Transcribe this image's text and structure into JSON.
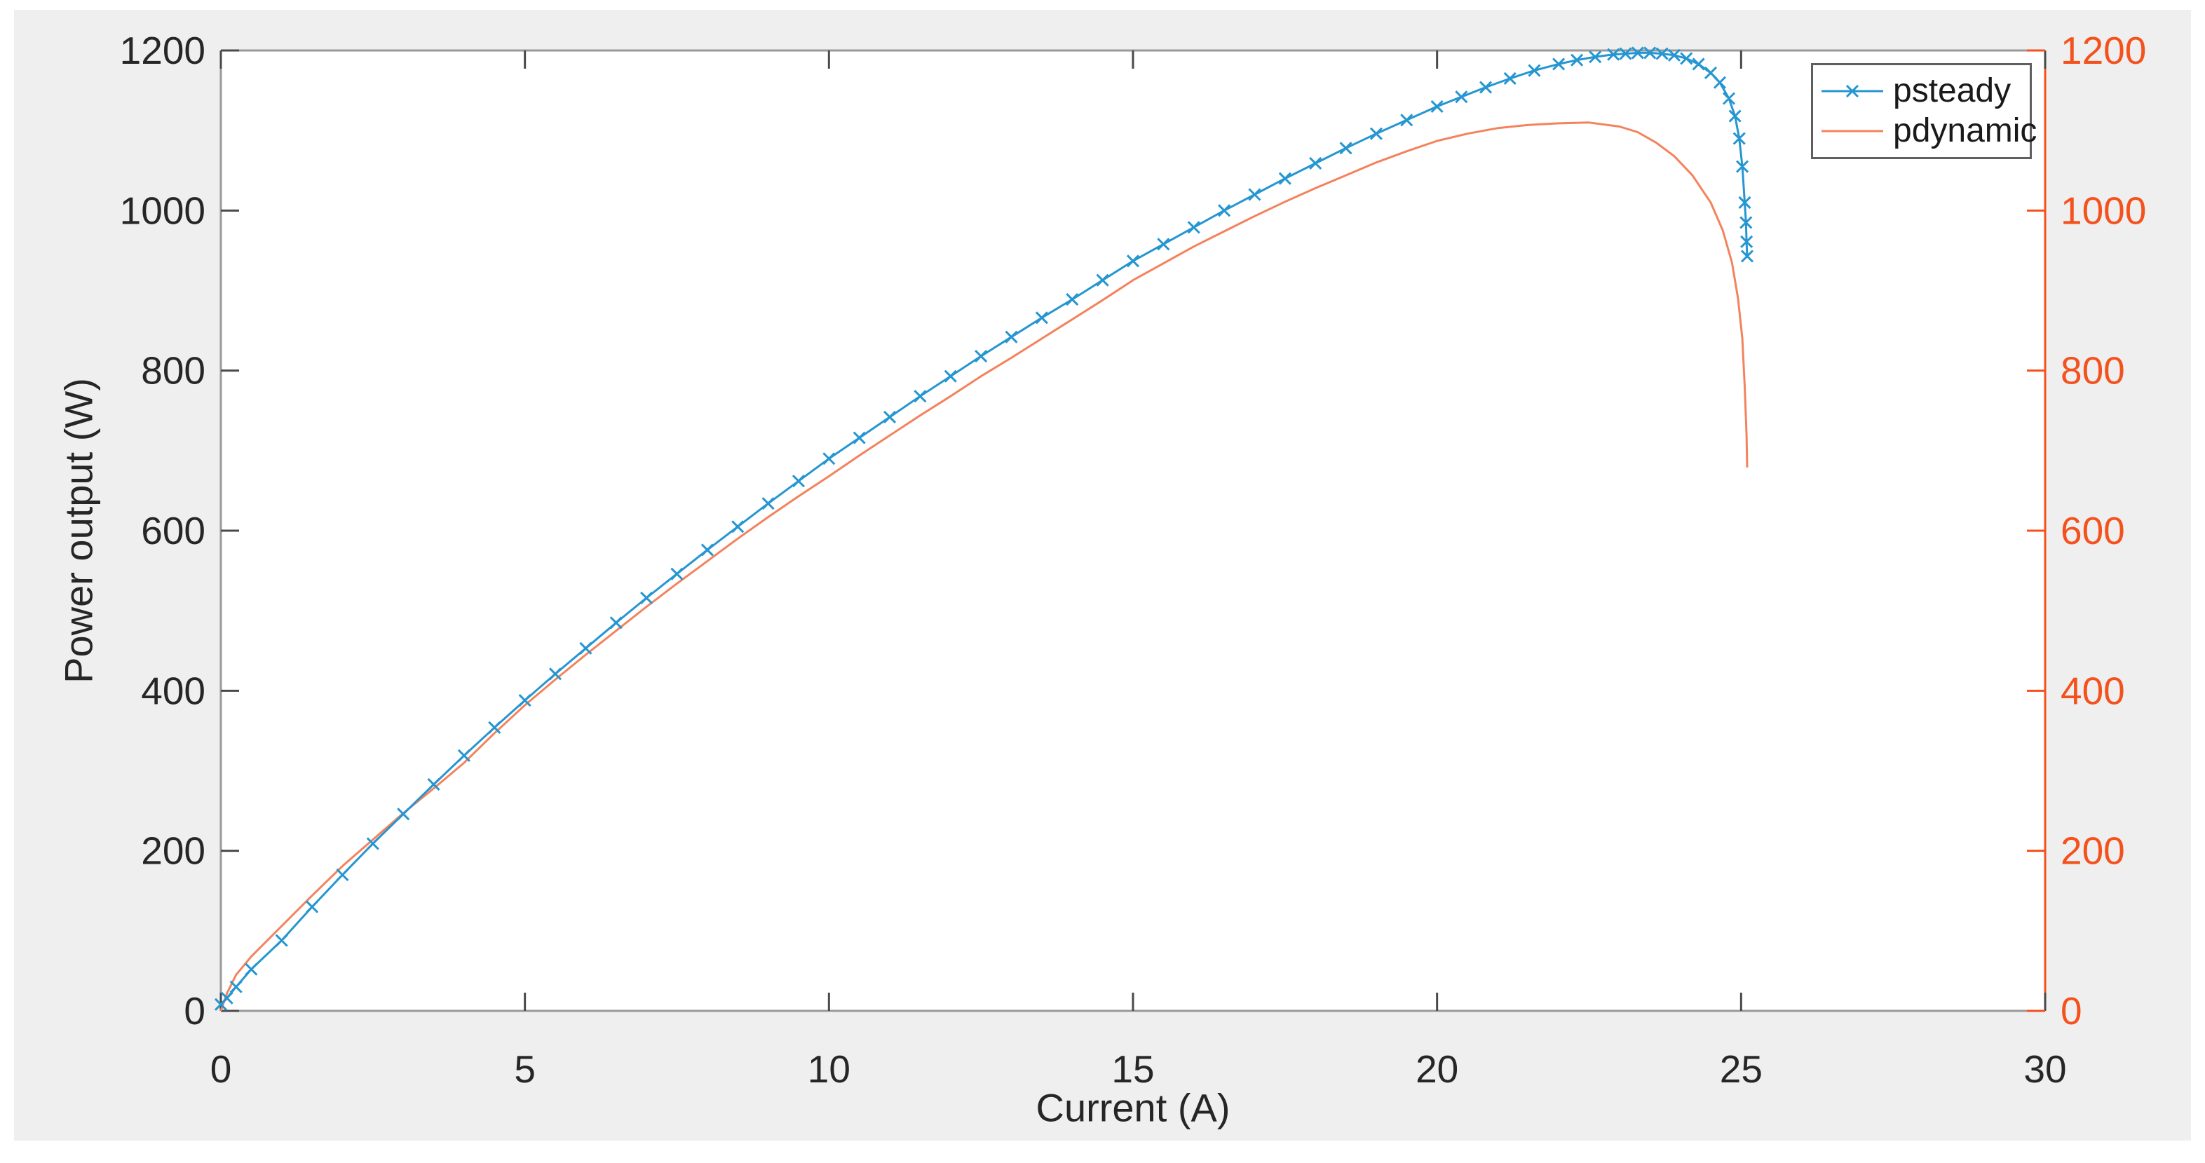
{
  "window": {
    "background": "#ffffff",
    "figure_background": "#efefef",
    "plot_background": "#ffffff"
  },
  "chart_data": {
    "type": "line",
    "title": "",
    "xlabel": "Current (A)",
    "ylabel": "Power output (W)",
    "xlim": [
      0,
      30
    ],
    "ylim_left": [
      0,
      1200
    ],
    "ylim_right": [
      0,
      1200
    ],
    "xticks": [
      0,
      5,
      10,
      15,
      20,
      25,
      30
    ],
    "yticks_left": [
      0,
      200,
      400,
      600,
      800,
      1000,
      1200
    ],
    "yticks_right": [
      0,
      200,
      400,
      600,
      800,
      1000,
      1200
    ],
    "grid": false,
    "box": true,
    "tick_direction": "in",
    "axis_colors": {
      "bottom_text": "#262626",
      "left_text": "#262626",
      "right_text": "#f4511c",
      "box_line": "#9a9a9a",
      "tick_line": "#4a4a4a",
      "right_axis_line": "#f4511c"
    },
    "legend": {
      "position": "top-right",
      "background": "#ffffff",
      "border_color": "#5f5f5f",
      "entries": [
        {
          "label": "psteady",
          "color": "#2596d1",
          "marker": "x"
        },
        {
          "label": "pdynamic",
          "color": "#f4825c",
          "marker": "none"
        }
      ]
    },
    "series": [
      {
        "name": "psteady",
        "axis": "left",
        "color": "#2596d1",
        "marker": "x",
        "line_width": 3,
        "points": [
          [
            0,
            8
          ],
          [
            0.1,
            16
          ],
          [
            0.25,
            30
          ],
          [
            0.5,
            52
          ],
          [
            1,
            88
          ],
          [
            1.5,
            130
          ],
          [
            2,
            170
          ],
          [
            2.5,
            209
          ],
          [
            3,
            246
          ],
          [
            3.5,
            283
          ],
          [
            4,
            319
          ],
          [
            4.5,
            354
          ],
          [
            5,
            388
          ],
          [
            5.5,
            421
          ],
          [
            6,
            453
          ],
          [
            6.5,
            485
          ],
          [
            7,
            516
          ],
          [
            7.5,
            546
          ],
          [
            8,
            576
          ],
          [
            8.5,
            605
          ],
          [
            9,
            634
          ],
          [
            9.5,
            662
          ],
          [
            10,
            690
          ],
          [
            10.5,
            716
          ],
          [
            11,
            742
          ],
          [
            11.5,
            768
          ],
          [
            12,
            793
          ],
          [
            12.5,
            818
          ],
          [
            13,
            842
          ],
          [
            13.5,
            866
          ],
          [
            14,
            889
          ],
          [
            14.5,
            913
          ],
          [
            15,
            937
          ],
          [
            15.5,
            958
          ],
          [
            16,
            979
          ],
          [
            16.5,
            1000
          ],
          [
            17,
            1020
          ],
          [
            17.5,
            1040
          ],
          [
            18,
            1059
          ],
          [
            18.5,
            1078
          ],
          [
            19,
            1096
          ],
          [
            19.5,
            1113
          ],
          [
            20,
            1130
          ],
          [
            20.4,
            1142
          ],
          [
            20.8,
            1154
          ],
          [
            21.2,
            1165
          ],
          [
            21.6,
            1175
          ],
          [
            22,
            1183
          ],
          [
            22.3,
            1188
          ],
          [
            22.6,
            1192
          ],
          [
            22.9,
            1195
          ],
          [
            23.1,
            1196
          ],
          [
            23.3,
            1197
          ],
          [
            23.5,
            1197
          ],
          [
            23.7,
            1196
          ],
          [
            23.9,
            1194
          ],
          [
            24.1,
            1190
          ],
          [
            24.3,
            1183
          ],
          [
            24.5,
            1172
          ],
          [
            24.65,
            1160
          ],
          [
            24.8,
            1140
          ],
          [
            24.9,
            1118
          ],
          [
            24.97,
            1090
          ],
          [
            25.02,
            1055
          ],
          [
            25.06,
            1010
          ],
          [
            25.08,
            985
          ],
          [
            25.09,
            961
          ],
          [
            25.1,
            943
          ]
        ]
      },
      {
        "name": "pdynamic",
        "axis": "right",
        "color": "#f4825c",
        "marker": "none",
        "line_width": 3,
        "points": [
          [
            0,
            0
          ],
          [
            0.1,
            22
          ],
          [
            0.25,
            45
          ],
          [
            0.5,
            68
          ],
          [
            0.75,
            87
          ],
          [
            1,
            106
          ],
          [
            1.5,
            144
          ],
          [
            2,
            181
          ],
          [
            2.5,
            214
          ],
          [
            3,
            247
          ],
          [
            3.5,
            278
          ],
          [
            4,
            310
          ],
          [
            4.5,
            347
          ],
          [
            5,
            382
          ],
          [
            5.5,
            414
          ],
          [
            6,
            445
          ],
          [
            6.5,
            475
          ],
          [
            7,
            505
          ],
          [
            7.5,
            534
          ],
          [
            8,
            562
          ],
          [
            8.5,
            590
          ],
          [
            9,
            617
          ],
          [
            9.5,
            643
          ],
          [
            10,
            668
          ],
          [
            10.5,
            694
          ],
          [
            11,
            719
          ],
          [
            11.5,
            744
          ],
          [
            12,
            768
          ],
          [
            12.5,
            793
          ],
          [
            13,
            816
          ],
          [
            13.5,
            840
          ],
          [
            14,
            864
          ],
          [
            14.5,
            888
          ],
          [
            15,
            913
          ],
          [
            15.5,
            934
          ],
          [
            16,
            955
          ],
          [
            16.5,
            974
          ],
          [
            17,
            993
          ],
          [
            17.5,
            1011
          ],
          [
            18,
            1028
          ],
          [
            18.5,
            1044
          ],
          [
            19,
            1060
          ],
          [
            19.5,
            1074
          ],
          [
            20,
            1087
          ],
          [
            20.5,
            1096
          ],
          [
            21,
            1103
          ],
          [
            21.5,
            1107
          ],
          [
            22,
            1109
          ],
          [
            22.5,
            1110
          ],
          [
            23,
            1105
          ],
          [
            23.3,
            1098
          ],
          [
            23.6,
            1085
          ],
          [
            23.9,
            1068
          ],
          [
            24.2,
            1044
          ],
          [
            24.5,
            1010
          ],
          [
            24.7,
            975
          ],
          [
            24.85,
            935
          ],
          [
            24.95,
            890
          ],
          [
            25.02,
            840
          ],
          [
            25.06,
            780
          ],
          [
            25.09,
            720
          ],
          [
            25.1,
            679
          ]
        ]
      }
    ]
  }
}
